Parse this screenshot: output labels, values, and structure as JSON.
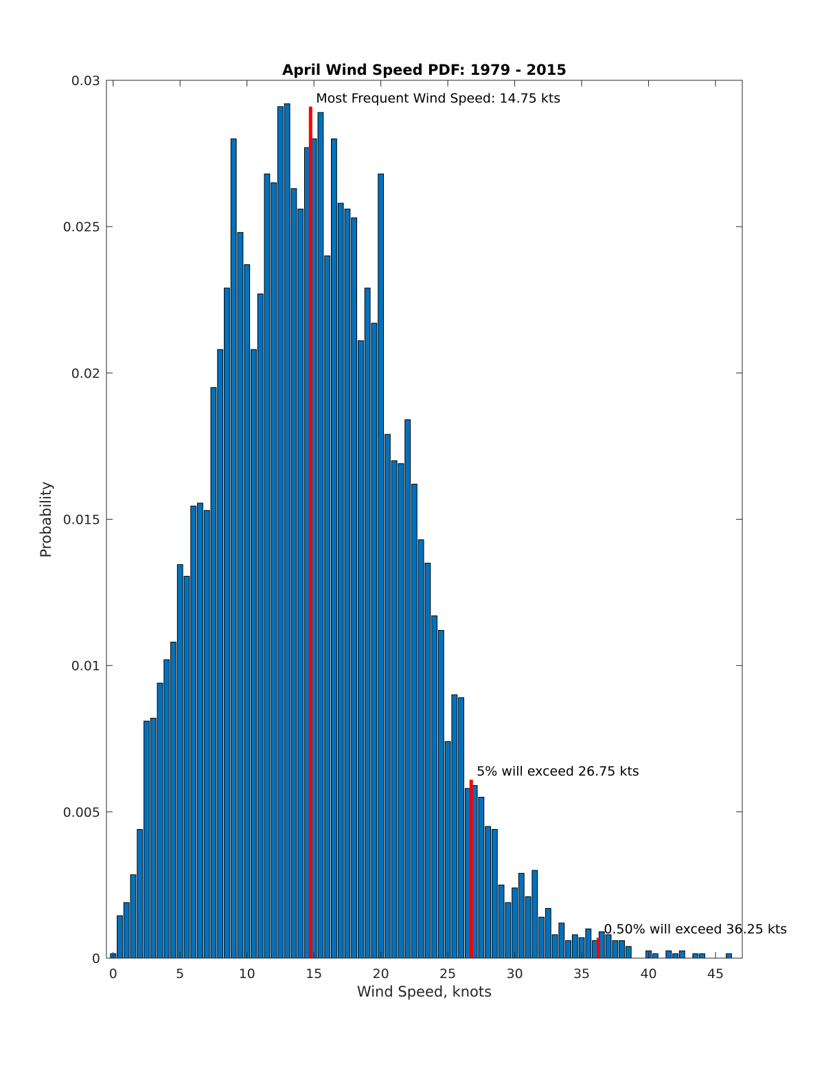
{
  "chart_data": {
    "type": "bar",
    "title": "April Wind Speed PDF: 1979 - 2015",
    "xlabel": "Wind Speed, knots",
    "ylabel": "Probability",
    "xlim": [
      -0.5,
      47
    ],
    "ylim": [
      0,
      0.03
    ],
    "xticks": [
      0,
      5,
      10,
      15,
      20,
      25,
      30,
      35,
      40,
      45
    ],
    "yticks": [
      0,
      0.005,
      0.01,
      0.015,
      0.02,
      0.025,
      0.03
    ],
    "ytick_labels": [
      "0",
      "0.005",
      "0.01",
      "0.015",
      "0.02",
      "0.025",
      "0.03"
    ],
    "bin_width": 0.5,
    "x": [
      0,
      0.5,
      1,
      1.5,
      2,
      2.5,
      3,
      3.5,
      4,
      4.5,
      5,
      5.5,
      6,
      6.5,
      7,
      7.5,
      8,
      8.5,
      9,
      9.5,
      10,
      10.5,
      11,
      11.5,
      12,
      12.5,
      13,
      13.5,
      14,
      14.5,
      15,
      15.5,
      16,
      16.5,
      17,
      17.5,
      18,
      18.5,
      19,
      19.5,
      20,
      20.5,
      21,
      21.5,
      22,
      22.5,
      23,
      23.5,
      24,
      24.5,
      25,
      25.5,
      26,
      26.5,
      27,
      27.5,
      28,
      28.5,
      29,
      29.5,
      30,
      30.5,
      31,
      31.5,
      32,
      32.5,
      33,
      33.5,
      34,
      34.5,
      35,
      35.5,
      36,
      36.5,
      37,
      37.5,
      38,
      38.5,
      39,
      39.5,
      40,
      40.5,
      41,
      41.5,
      42,
      42.5,
      43,
      43.5,
      44,
      44.5,
      45,
      45.5,
      46,
      46.5
    ],
    "values": [
      0.00015,
      0.00145,
      0.0019,
      0.00285,
      0.0044,
      0.0081,
      0.0082,
      0.0094,
      0.0102,
      0.0108,
      0.01345,
      0.01305,
      0.01545,
      0.01555,
      0.0153,
      0.0195,
      0.0208,
      0.0229,
      0.028,
      0.0248,
      0.0237,
      0.0208,
      0.0227,
      0.0268,
      0.0265,
      0.0291,
      0.0292,
      0.0263,
      0.0256,
      0.0277,
      0.028,
      0.0289,
      0.024,
      0.028,
      0.0258,
      0.0256,
      0.0253,
      0.0211,
      0.0229,
      0.0217,
      0.0268,
      0.0179,
      0.017,
      0.0169,
      0.0184,
      0.0162,
      0.0143,
      0.0135,
      0.0117,
      0.0112,
      0.0074,
      0.009,
      0.0089,
      0.0058,
      0.0059,
      0.0055,
      0.0045,
      0.0044,
      0.0025,
      0.0019,
      0.0024,
      0.0029,
      0.0021,
      0.003,
      0.0014,
      0.0017,
      0.0008,
      0.0012,
      0.0006,
      0.0008,
      0.0007,
      0.001,
      0.0006,
      0.0009,
      0.0008,
      0.0006,
      0.0006,
      0.0004,
      0.0,
      0.0,
      0.00025,
      0.00015,
      0.0,
      0.00025,
      0.00015,
      0.00025,
      0.0,
      0.00015,
      0.00015,
      0.0,
      0.0,
      0.0,
      0.00015,
      0.0
    ],
    "markers": [
      {
        "x": 14.75,
        "top": 0.0291,
        "label": "Most Frequent Wind Speed: 14.75 kts"
      },
      {
        "x": 26.75,
        "top": 0.0061,
        "label": "5% will exceed 26.75 kts"
      },
      {
        "x": 36.25,
        "top": 0.0007,
        "label": "0.50% will exceed 36.25 kts"
      }
    ],
    "colors": {
      "bar": "#0072bd",
      "marker": "#ff0000"
    },
    "grid": false,
    "legend": "none"
  }
}
